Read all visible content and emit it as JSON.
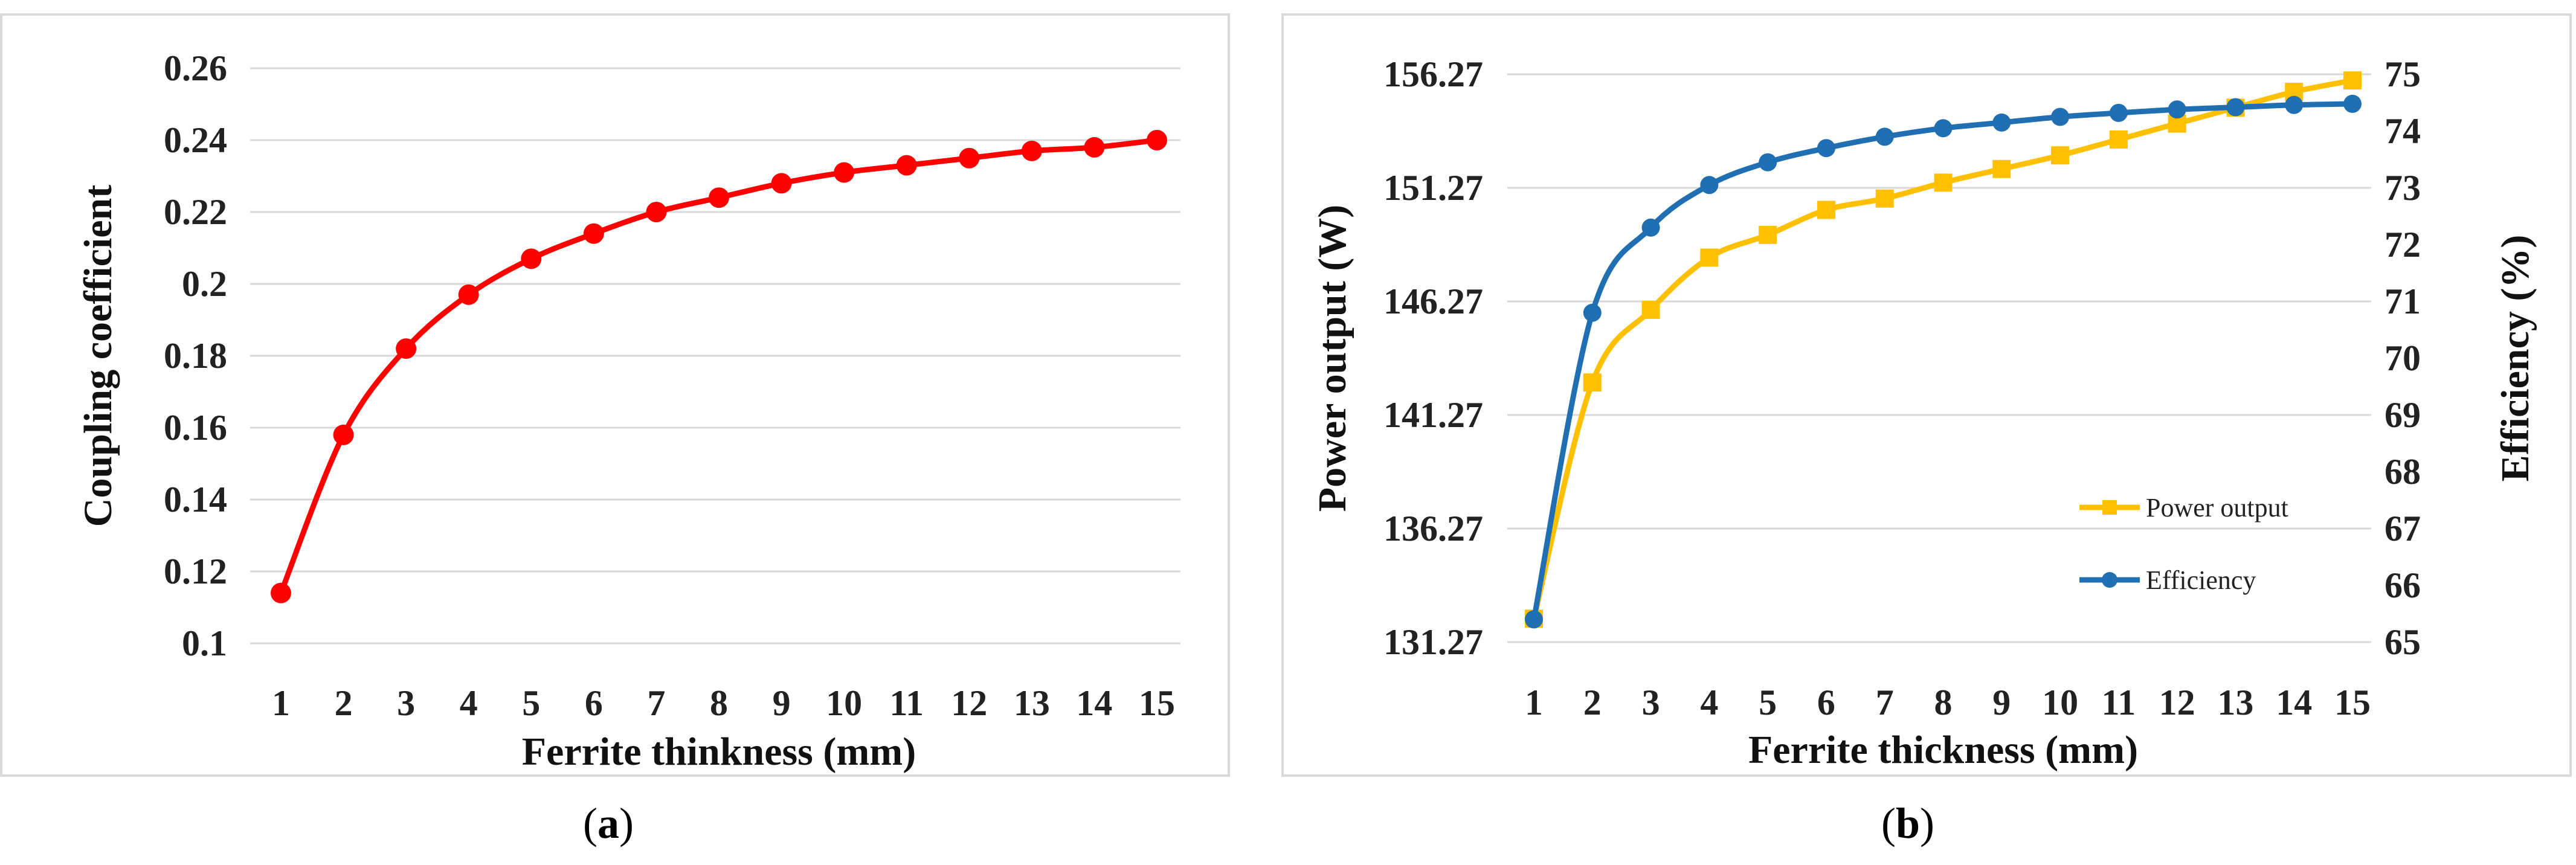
{
  "chart_data": [
    {
      "type": "line",
      "panel_label": "a",
      "xlabel": "Ferrite thinkness (mm)",
      "ylabel": "Coupling coefficient",
      "x": [
        1,
        2,
        3,
        4,
        5,
        6,
        7,
        8,
        9,
        10,
        11,
        12,
        13,
        14,
        15
      ],
      "ylim": [
        0.1,
        0.26
      ],
      "yticks": [
        0.1,
        0.12,
        0.14,
        0.16,
        0.18,
        0.2,
        0.22,
        0.24,
        0.26
      ],
      "ytick_labels": [
        "0.1",
        "0.12",
        "0.14",
        "0.16",
        "0.18",
        "0.2",
        "0.22",
        "0.24",
        "0.26"
      ],
      "grid": true,
      "series": [
        {
          "values": [
            0.114,
            0.158,
            0.182,
            0.197,
            0.207,
            0.214,
            0.22,
            0.224,
            0.228,
            0.231,
            0.233,
            0.235,
            0.237,
            0.238,
            0.24
          ],
          "color": "#ff0000",
          "marker": "circle"
        }
      ]
    },
    {
      "type": "line",
      "panel_label": "b",
      "xlabel": "Ferrite thickness (mm)",
      "ylabel": "Power output (W)",
      "y2label": "Efficiency (%)",
      "x": [
        1,
        2,
        3,
        4,
        5,
        6,
        7,
        8,
        9,
        10,
        11,
        12,
        13,
        14,
        15
      ],
      "ylim": [
        131.27,
        156.27
      ],
      "yticks": [
        131.27,
        136.27,
        141.27,
        146.27,
        151.27,
        156.27
      ],
      "ytick_labels": [
        "131.27",
        "136.27",
        "141.27",
        "146.27",
        "151.27",
        "156.27"
      ],
      "y2lim": [
        65,
        75
      ],
      "y2ticks": [
        65,
        66,
        67,
        68,
        69,
        70,
        71,
        72,
        73,
        74,
        75
      ],
      "y2tick_labels": [
        "65",
        "66",
        "67",
        "68",
        "69",
        "70",
        "71",
        "72",
        "73",
        "74",
        "75"
      ],
      "grid": true,
      "legend_position": "bottom-right",
      "series": [
        {
          "name": "Power output",
          "axis": "left",
          "color": "#ffc000",
          "marker": "square",
          "values": [
            132.3,
            142.7,
            145.9,
            148.2,
            149.2,
            150.3,
            150.8,
            151.5,
            152.1,
            152.7,
            153.4,
            154.1,
            154.8,
            155.5,
            156.0
          ]
        },
        {
          "name": "Efficiency",
          "axis": "right",
          "color": "#1f6fb2",
          "marker": "circle",
          "values": [
            65.4,
            70.8,
            72.3,
            73.05,
            73.45,
            73.7,
            73.9,
            74.05,
            74.15,
            74.25,
            74.32,
            74.38,
            74.42,
            74.46,
            74.48
          ]
        }
      ]
    }
  ],
  "captions": {
    "a": "a",
    "b": "b"
  }
}
